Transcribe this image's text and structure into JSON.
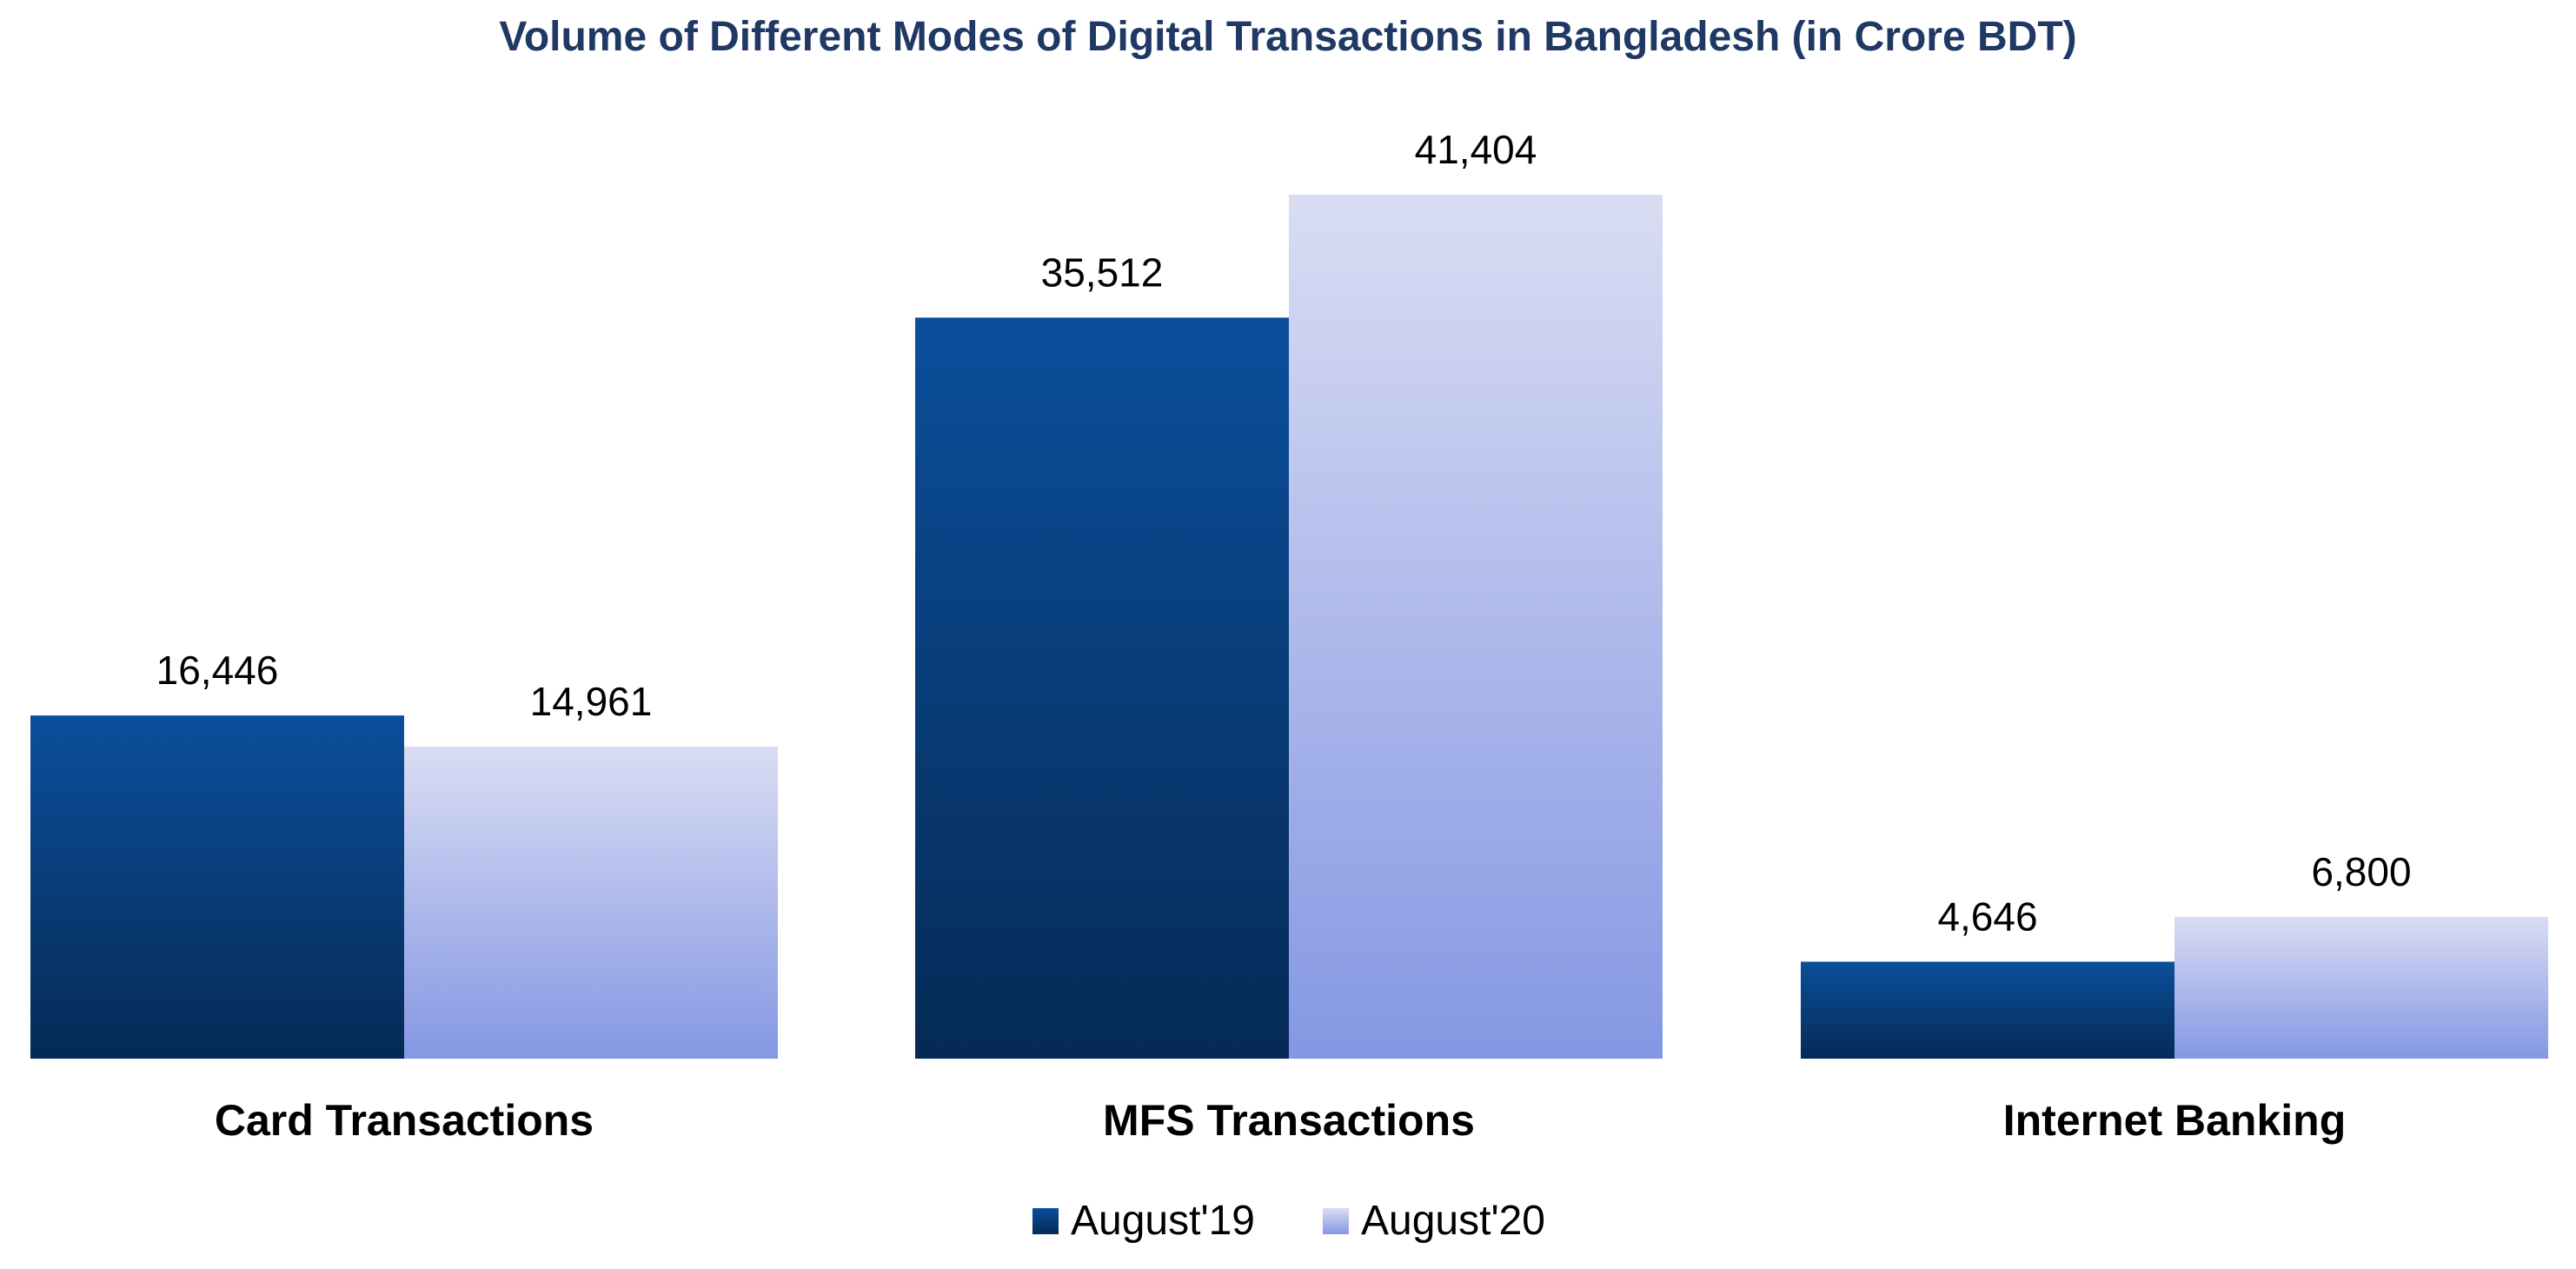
{
  "chart_data": {
    "type": "bar",
    "title": "Volume of Different Modes of Digital Transactions in Bangladesh (in Crore BDT)",
    "xlabel": "",
    "ylabel": "",
    "categories": [
      "Card Transactions",
      "MFS Transactions",
      "Internet Banking"
    ],
    "series": [
      {
        "name": "August'19",
        "values": [
          16446,
          35512,
          4646
        ],
        "labels": [
          "16,446",
          "35,512",
          "4,646"
        ],
        "color_top": "#0b4f9c",
        "color_bottom": "#062a55"
      },
      {
        "name": "August'20",
        "values": [
          14961,
          41404,
          6800
        ],
        "labels": [
          "14,961",
          "41,404",
          "6,800"
        ],
        "color_top": "#d9ddf3",
        "color_bottom": "#8497e3"
      }
    ],
    "ylim": [
      0,
      41404
    ],
    "grid": false,
    "legend_position": "bottom"
  }
}
